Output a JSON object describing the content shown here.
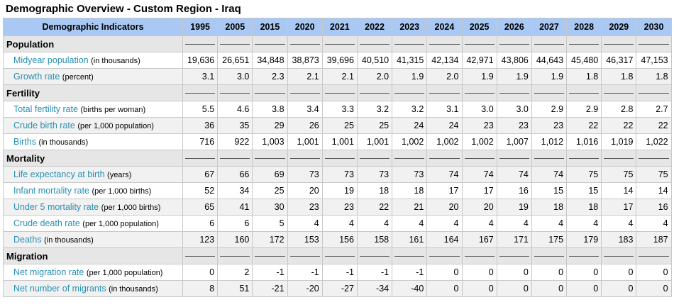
{
  "title": "Demographic Overview - Custom Region - Iraq",
  "header": {
    "indicator_label": "Demographic Indicators",
    "years": [
      "1995",
      "2005",
      "2015",
      "2020",
      "2021",
      "2022",
      "2023",
      "2024",
      "2025",
      "2026",
      "2027",
      "2028",
      "2029",
      "2030"
    ]
  },
  "sections": [
    {
      "label": "Population",
      "rows": [
        {
          "name": "Midyear population",
          "unit": "(in thousands)",
          "values": [
            "19,636",
            "26,651",
            "34,848",
            "38,873",
            "39,696",
            "40,510",
            "41,315",
            "42,134",
            "42,971",
            "43,806",
            "44,643",
            "45,480",
            "46,317",
            "47,153"
          ]
        },
        {
          "name": "Growth rate",
          "unit": "(percent)",
          "values": [
            "3.1",
            "3.0",
            "2.3",
            "2.1",
            "2.1",
            "2.0",
            "1.9",
            "2.0",
            "1.9",
            "1.9",
            "1.9",
            "1.8",
            "1.8",
            "1.8"
          ]
        }
      ]
    },
    {
      "label": "Fertility",
      "rows": [
        {
          "name": "Total fertility rate",
          "unit": "(births per woman)",
          "values": [
            "5.5",
            "4.6",
            "3.8",
            "3.4",
            "3.3",
            "3.2",
            "3.2",
            "3.1",
            "3.0",
            "3.0",
            "2.9",
            "2.9",
            "2.8",
            "2.7"
          ]
        },
        {
          "name": "Crude birth rate",
          "unit": "(per 1,000 population)",
          "values": [
            "36",
            "35",
            "29",
            "26",
            "25",
            "25",
            "24",
            "24",
            "23",
            "23",
            "23",
            "22",
            "22",
            "22"
          ]
        },
        {
          "name": "Births",
          "unit": "(in thousands)",
          "values": [
            "716",
            "922",
            "1,003",
            "1,001",
            "1,001",
            "1,001",
            "1,002",
            "1,002",
            "1,002",
            "1,007",
            "1,012",
            "1,016",
            "1,019",
            "1,022"
          ]
        }
      ]
    },
    {
      "label": "Mortality",
      "rows": [
        {
          "name": "Life expectancy at birth",
          "unit": "(years)",
          "values": [
            "67",
            "66",
            "69",
            "73",
            "73",
            "73",
            "73",
            "74",
            "74",
            "74",
            "74",
            "75",
            "75",
            "75"
          ]
        },
        {
          "name": "Infant mortality rate",
          "unit": "(per 1,000 births)",
          "values": [
            "52",
            "34",
            "25",
            "20",
            "19",
            "18",
            "18",
            "17",
            "17",
            "16",
            "15",
            "15",
            "14",
            "14"
          ]
        },
        {
          "name": "Under 5 mortality rate",
          "unit": "(per 1,000 births)",
          "values": [
            "65",
            "41",
            "30",
            "23",
            "23",
            "22",
            "21",
            "20",
            "20",
            "19",
            "18",
            "18",
            "17",
            "16"
          ]
        },
        {
          "name": "Crude death rate",
          "unit": "(per 1,000 population)",
          "values": [
            "6",
            "6",
            "5",
            "4",
            "4",
            "4",
            "4",
            "4",
            "4",
            "4",
            "4",
            "4",
            "4",
            "4"
          ]
        },
        {
          "name": "Deaths",
          "unit": "(in thousands)",
          "values": [
            "123",
            "160",
            "172",
            "153",
            "156",
            "158",
            "161",
            "164",
            "167",
            "171",
            "175",
            "179",
            "183",
            "187"
          ]
        }
      ]
    },
    {
      "label": "Migration",
      "rows": [
        {
          "name": "Net migration rate",
          "unit": "(per 1,000 population)",
          "values": [
            "0",
            "2",
            "-1",
            "-1",
            "-1",
            "-1",
            "-1",
            "0",
            "0",
            "0",
            "0",
            "0",
            "0",
            "0"
          ]
        },
        {
          "name": "Net number of migrants",
          "unit": "(in thousands)",
          "values": [
            "8",
            "51",
            "-21",
            "-20",
            "-27",
            "-34",
            "-40",
            "0",
            "0",
            "0",
            "0",
            "0",
            "0",
            "0"
          ]
        }
      ]
    }
  ]
}
